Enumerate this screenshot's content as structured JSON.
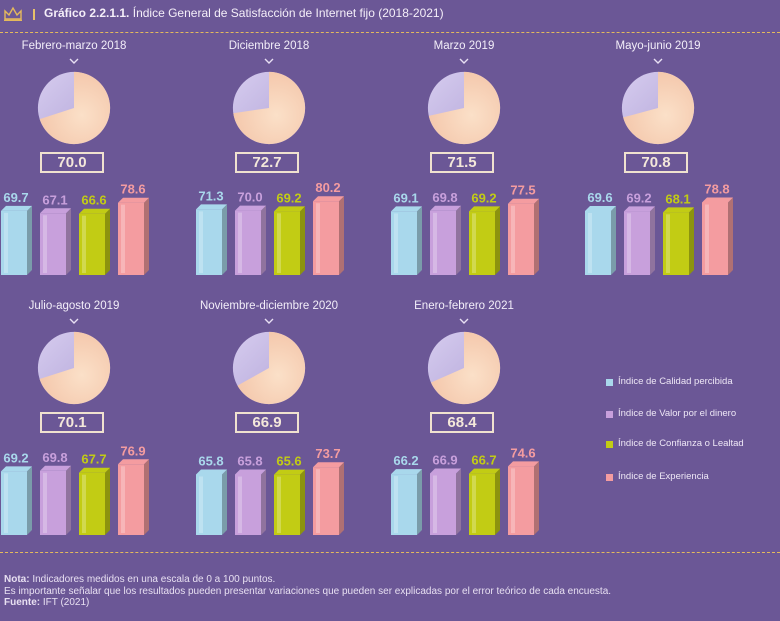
{
  "header": {
    "title_bold": "Gráfico 2.2.1.1.",
    "title_rest": "Índice General de Satisfacción de Internet fijo (2018-2021)"
  },
  "colors": {
    "calidad": "#a9d8ec",
    "valor": "#c8a0dc",
    "confianza": "#c2cc14",
    "experiencia": "#f49ca0",
    "pie_light": "#f3c4a8",
    "pie_dark": "#b1a3d6",
    "gold": "#e5b95c"
  },
  "legend": [
    {
      "label": "Índice de Calidad percibida",
      "color_key": "calidad"
    },
    {
      "label": "Índice de Valor por el dinero",
      "color_key": "valor"
    },
    {
      "label": "Índice de Confianza o Lealtad",
      "color_key": "confianza"
    },
    {
      "label": "Índice de Experiencia",
      "color_key": "experiencia"
    }
  ],
  "chart_data": {
    "type": "bar",
    "title": "Índice General de Satisfacción de Internet fijo (2018-2021)",
    "series_names": [
      "Índice de Calidad percibida",
      "Índice de Valor por el dinero",
      "Índice de Confianza o Lealtad",
      "Índice de Experiencia"
    ],
    "scale": [
      0,
      100
    ],
    "periods": [
      {
        "label": "Febrero-marzo 2018",
        "index": "70.0",
        "values": [
          "69.7",
          "67.1",
          "66.6",
          "78.6"
        ]
      },
      {
        "label": "Diciembre 2018",
        "index": "72.7",
        "values": [
          "71.3",
          "70.0",
          "69.2",
          "80.2"
        ]
      },
      {
        "label": "Marzo 2019",
        "index": "71.5",
        "values": [
          "69.1",
          "69.8",
          "69.2",
          "77.5"
        ]
      },
      {
        "label": "Mayo-junio 2019",
        "index": "70.8",
        "values": [
          "69.6",
          "69.2",
          "68.1",
          "78.8"
        ]
      },
      {
        "label": "Julio-agosto 2019",
        "index": "70.1",
        "values": [
          "69.2",
          "69.8",
          "67.7",
          "76.9"
        ]
      },
      {
        "label": "Noviembre-diciembre 2020",
        "index": "66.9",
        "values": [
          "65.8",
          "65.8",
          "65.6",
          "73.7"
        ]
      },
      {
        "label": "Enero-febrero 2021",
        "index": "68.4",
        "values": [
          "66.2",
          "66.9",
          "66.7",
          "74.6"
        ]
      }
    ]
  },
  "notes": {
    "nota_label": "Nota:",
    "nota_text": " Indicadores medidos en una escala de 0 a 100 puntos.",
    "line2": "Es importante señalar que los resultados pueden presentar variaciones que pueden ser explicadas por el error teórico de cada encuesta.",
    "fuente_label": "Fuente:",
    "fuente_text": " IFT (2021)"
  }
}
